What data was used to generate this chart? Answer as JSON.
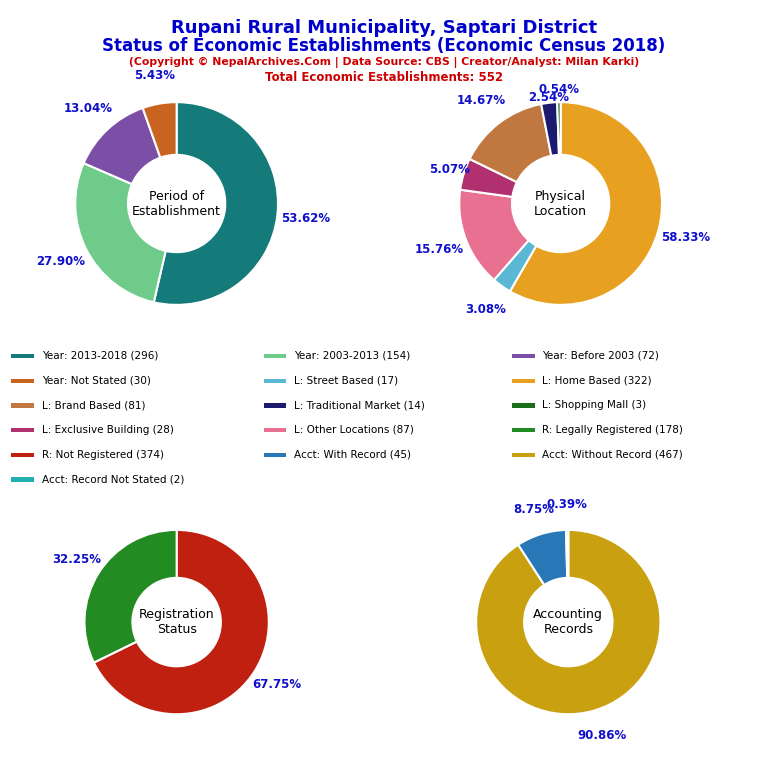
{
  "title_line1": "Rupani Rural Municipality, Saptari District",
  "title_line2": "Status of Economic Establishments (Economic Census 2018)",
  "subtitle": "(Copyright © NepalArchives.Com | Data Source: CBS | Creator/Analyst: Milan Karki)",
  "subtitle2": "Total Economic Establishments: 552",
  "title_color": "#0000cc",
  "subtitle_color": "#cc0000",
  "pie1_label": "Period of\nEstablishment",
  "pie1_values": [
    296,
    154,
    72,
    30
  ],
  "pie1_colors": [
    "#147a7a",
    "#6ecb8a",
    "#7b4fa6",
    "#c86420"
  ],
  "pie1_pcts": [
    "53.62%",
    "27.90%",
    "13.04%",
    "5.43%"
  ],
  "pie2_label": "Physical\nLocation",
  "pie2_values": [
    322,
    17,
    87,
    28,
    81,
    14,
    3
  ],
  "pie2_colors": [
    "#e8a020",
    "#5bb8d4",
    "#e87090",
    "#b03070",
    "#c07840",
    "#1a1a6e",
    "#1a6e1a"
  ],
  "pie2_pcts": [
    "58.33%",
    "3.08%",
    "15.76%",
    "5.07%",
    "14.67%",
    "2.54%",
    "0.54%"
  ],
  "pie3_label": "Registration\nStatus",
  "pie3_values": [
    374,
    178
  ],
  "pie3_colors": [
    "#c02010",
    "#228B22"
  ],
  "pie3_pcts": [
    "67.75%",
    "32.25%"
  ],
  "pie4_label": "Accounting\nRecords",
  "pie4_values": [
    467,
    45,
    2
  ],
  "pie4_colors": [
    "#c8a010",
    "#2878b8",
    "#20b0b0"
  ],
  "pie4_pcts": [
    "90.86%",
    "8.75%",
    "0.39%"
  ],
  "legend_col1": [
    {
      "label": "Year: 2013-2018 (296)",
      "color": "#147a7a"
    },
    {
      "label": "Year: Not Stated (30)",
      "color": "#c86420"
    },
    {
      "label": "L: Brand Based (81)",
      "color": "#c07840"
    },
    {
      "label": "L: Exclusive Building (28)",
      "color": "#b03070"
    },
    {
      "label": "R: Not Registered (374)",
      "color": "#c02010"
    },
    {
      "label": "Acct: Record Not Stated (2)",
      "color": "#20b0b0"
    }
  ],
  "legend_col2": [
    {
      "label": "Year: 2003-2013 (154)",
      "color": "#6ecb8a"
    },
    {
      "label": "L: Street Based (17)",
      "color": "#5bb8d4"
    },
    {
      "label": "L: Traditional Market (14)",
      "color": "#1a1a6e"
    },
    {
      "label": "L: Other Locations (87)",
      "color": "#e87090"
    },
    {
      "label": "Acct: With Record (45)",
      "color": "#2878b8"
    }
  ],
  "legend_col3": [
    {
      "label": "Year: Before 2003 (72)",
      "color": "#7b4fa6"
    },
    {
      "label": "L: Home Based (322)",
      "color": "#e8a020"
    },
    {
      "label": "L: Shopping Mall (3)",
      "color": "#1a6e1a"
    },
    {
      "label": "R: Legally Registered (178)",
      "color": "#228B22"
    },
    {
      "label": "Acct: Without Record (467)",
      "color": "#c8a010"
    }
  ],
  "bg_color": "#ffffff",
  "pct_color": "#1010cc",
  "label_fontsize": 8.5
}
